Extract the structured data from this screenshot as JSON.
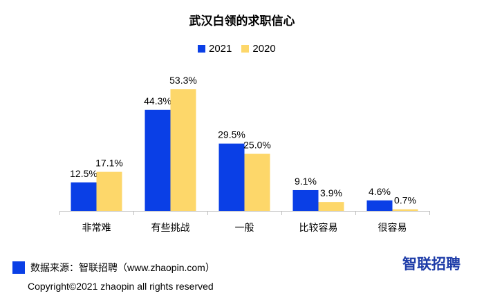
{
  "header": {
    "title": "武汉白领的求职信心"
  },
  "footer": {
    "source": "数据来源：智联招聘（www.zhaopin.com）",
    "copyright": "Copyright©2021 zhaopin all rights reserved",
    "brand": "智联招聘"
  },
  "colors": {
    "series_2021": "#0a3fe6",
    "series_2020": "#fdd76a",
    "axis": "#bfbfbf",
    "brand": "#1e3ca8"
  },
  "chart_data": {
    "type": "bar",
    "title": "武汉白领的求职信心",
    "categories": [
      "非常难",
      "有些挑战",
      "一般",
      "比较容易",
      "很容易"
    ],
    "series": [
      {
        "name": "2021",
        "values": [
          12.5,
          44.3,
          29.5,
          9.1,
          4.6
        ],
        "labels": [
          "12.5%",
          "44.3%",
          "29.5%",
          "9.1%",
          "4.6%"
        ]
      },
      {
        "name": "2020",
        "values": [
          17.1,
          53.3,
          25.0,
          3.9,
          0.7
        ],
        "labels": [
          "17.1%",
          "53.3%",
          "25.0%",
          "3.9%",
          "0.7%"
        ]
      }
    ],
    "unit": "%",
    "legend_position": "top-center",
    "grid": false
  }
}
